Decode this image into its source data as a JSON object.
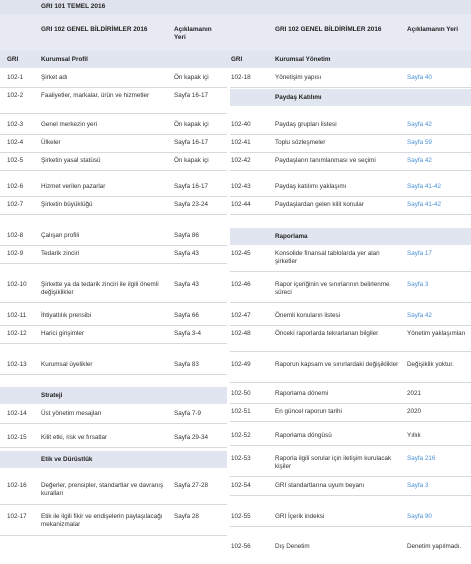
{
  "title": "GRI 101 TEMEL 2016",
  "header": {
    "left_title": "GRI 102 GENEL BİLDİRİMLER 2016",
    "left_page": "Açıklamanın Yeri",
    "right_title": "GRI 102 GENEL BİLDİRİMLER 2016",
    "right_page": "Açıklamanın Yeri",
    "gri_left": "GRI",
    "gri_right": "GRI"
  },
  "left": {
    "section1": "Kurumsal Profil",
    "rows": [
      {
        "code": "102-1",
        "desc": "Şirket adı",
        "page": "Ön kapak içi"
      },
      {
        "code": "102-2",
        "desc": "Faaliyetler, markalar, ürün ve hizmetler",
        "page": "Sayfa 16-17"
      },
      {
        "code": "102-3",
        "desc": "Genel merkezin yeri",
        "page": "Ön kapak içi"
      },
      {
        "code": "102-4",
        "desc": "Ülkeler",
        "page": "Sayfa 16-17"
      },
      {
        "code": "102-5",
        "desc": "Şirketin yasal statüsü",
        "page": "Ön kapak içi"
      },
      {
        "code": "102-6",
        "desc": "Hizmet verilen pazarlar",
        "page": "Sayfa 16-17"
      },
      {
        "code": "102-7",
        "desc": "Şirketin büyüklüğü",
        "page": "Sayfa 23-24"
      },
      {
        "code": "102-8",
        "desc": "Çalışan profili",
        "page": "Sayfa 86"
      },
      {
        "code": "102-9",
        "desc": "Tedarik zinciri",
        "page": "Sayfa 43"
      },
      {
        "code": "102-10",
        "desc": "Şirkette ya da tedarik zinciri ile ilgili önemli değişiklikler",
        "page": "Sayfa 43"
      },
      {
        "code": "102-11",
        "desc": "İhtiyatlılık prensibi",
        "page": "Sayfa 66"
      },
      {
        "code": "102-12",
        "desc": "Harici girişimler",
        "page": "Sayfa 3-4"
      },
      {
        "code": "102-13",
        "desc": "Kurumsal üyelikler",
        "page": "Sayfa 83"
      }
    ],
    "section2": "Strateji",
    "rows2": [
      {
        "code": "102-14",
        "desc": "Üst yönetim mesajları",
        "page": "Sayfa 7-9"
      },
      {
        "code": "102-15",
        "desc": "Kilit etki, risk ve fırsatlar",
        "page": "Sayfa 29-34"
      }
    ],
    "section3": "Etik ve Dürüstlük",
    "rows3": [
      {
        "code": "102-16",
        "desc": "Değerler, prensipler, standartlar ve davranış kuralları",
        "page": "Sayfa 27-28"
      },
      {
        "code": "102-17",
        "desc": "Etik ile ilgili fikir ve endişelerin paylaşılacağı mekanizmalar",
        "page": "Sayfa 28"
      }
    ]
  },
  "right": {
    "section1": "Kurumsal Yönetim",
    "r1": {
      "code": "102-18",
      "desc": "Yönetişim yapısı",
      "page": "Sayfa 40"
    },
    "section2": "Paydaş Katılımı",
    "rows": [
      {
        "code": "102-40",
        "desc": "Paydaş grupları listesi",
        "page": "Sayfa 42"
      },
      {
        "code": "102-41",
        "desc": "Toplu sözleşmeler",
        "page": "Sayfa 59"
      },
      {
        "code": "102-42",
        "desc": "Paydaşların tanımlanması ve seçimi",
        "page": "Sayfa 42"
      },
      {
        "code": "102-43",
        "desc": "Paydaş katılımı yaklaşımı",
        "page": "Sayfa 41-42"
      },
      {
        "code": "102-44",
        "desc": "Paydaşlardan gelen kilit konular",
        "page": "Sayfa 41-42"
      }
    ],
    "section3": "Raporlama",
    "rows2": [
      {
        "code": "102-45",
        "desc": "Konsolide finansal tablolarda yer alan şirketler",
        "page": "Sayfa 17"
      },
      {
        "code": "102-46",
        "desc": "Rapor içeriğinin ve sınırlarının belirlenme süreci",
        "page": "Sayfa 3"
      },
      {
        "code": "102-47",
        "desc": "Önemli konuların listesi",
        "page": "Sayfa 42"
      },
      {
        "code": "102-48",
        "desc": "Önceki raporlarda tekrarlanan bilgiler",
        "page": "Yönetim yaklaşımları"
      },
      {
        "code": "102-49",
        "desc": "Raporun kapsam ve sınırlardaki değişiklikler",
        "page": "Değişiklik yoktur."
      },
      {
        "code": "102-50",
        "desc": "Raporlama dönemi",
        "page": "2021"
      },
      {
        "code": "102-51",
        "desc": "En güncel raporun tarihi",
        "page": "2020"
      },
      {
        "code": "102-52",
        "desc": "Raporlama döngüsü",
        "page": "Yıllık"
      },
      {
        "code": "102-53",
        "desc": "Raporla ilgili sorular için iletişim kurulacak kişiler",
        "page": "Sayfa 216"
      },
      {
        "code": "102-54",
        "desc": "GRI standartlarına uyum beyanı",
        "page": "Sayfa 3"
      },
      {
        "code": "102-55",
        "desc": "GRI İçerik indeksi",
        "page": "Sayfa 90"
      },
      {
        "code": "102-56",
        "desc": "Dış Denetim",
        "page": "Denetim yapılmadı."
      }
    ]
  }
}
